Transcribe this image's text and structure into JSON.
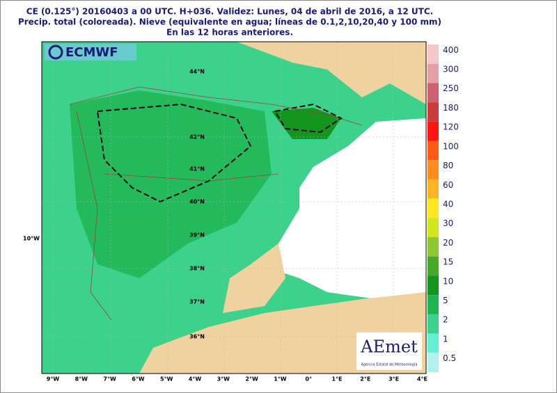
{
  "header": {
    "lines": [
      "CE (0.125°) 20160403 a 00 UTC.  H+036. Validez: Lunes, 04 de abril de 2016,  a  12 UTC.",
      "Precip. total (coloreada). Nieve (equivalente en agua; líneas de 0.1,2,10,20,40 y 100 mm)",
      "En las 12 horas anteriores."
    ]
  },
  "logos": {
    "ecmwf": "ECMWF",
    "aemet": "AEmet",
    "aemet_caption": "Agencia Estatal de Meteorología"
  },
  "longitude_labels": [
    "9°W",
    "8°W",
    "7°W",
    "6°W",
    "5°W",
    "4°W",
    "3°W",
    "2°W",
    "1°W",
    "0°",
    "1°E",
    "2°E",
    "3°E",
    "4°E"
  ],
  "left_label": "10°W",
  "latitude_labels": [
    "44°N",
    "42°N",
    "41°N",
    "40°N",
    "39°N",
    "38°N",
    "37°N",
    "36°N"
  ],
  "colorbar": {
    "labels": [
      "400",
      "300",
      "250",
      "180",
      "120",
      "100",
      "80",
      "60",
      "40",
      "30",
      "20",
      "15",
      "10",
      "5",
      "2",
      "1",
      "0.5"
    ],
    "colors": [
      "#f4c8c8",
      "#e6a0a8",
      "#d06070",
      "#c83c3c",
      "#ff1414",
      "#ff5a14",
      "#ff8c1e",
      "#ffb428",
      "#ffe61e",
      "#d2e61e",
      "#8cc832",
      "#46aa28",
      "#14961e",
      "#1eb450",
      "#3cd28c",
      "#64f0d2",
      "#b4f0f0"
    ]
  }
}
